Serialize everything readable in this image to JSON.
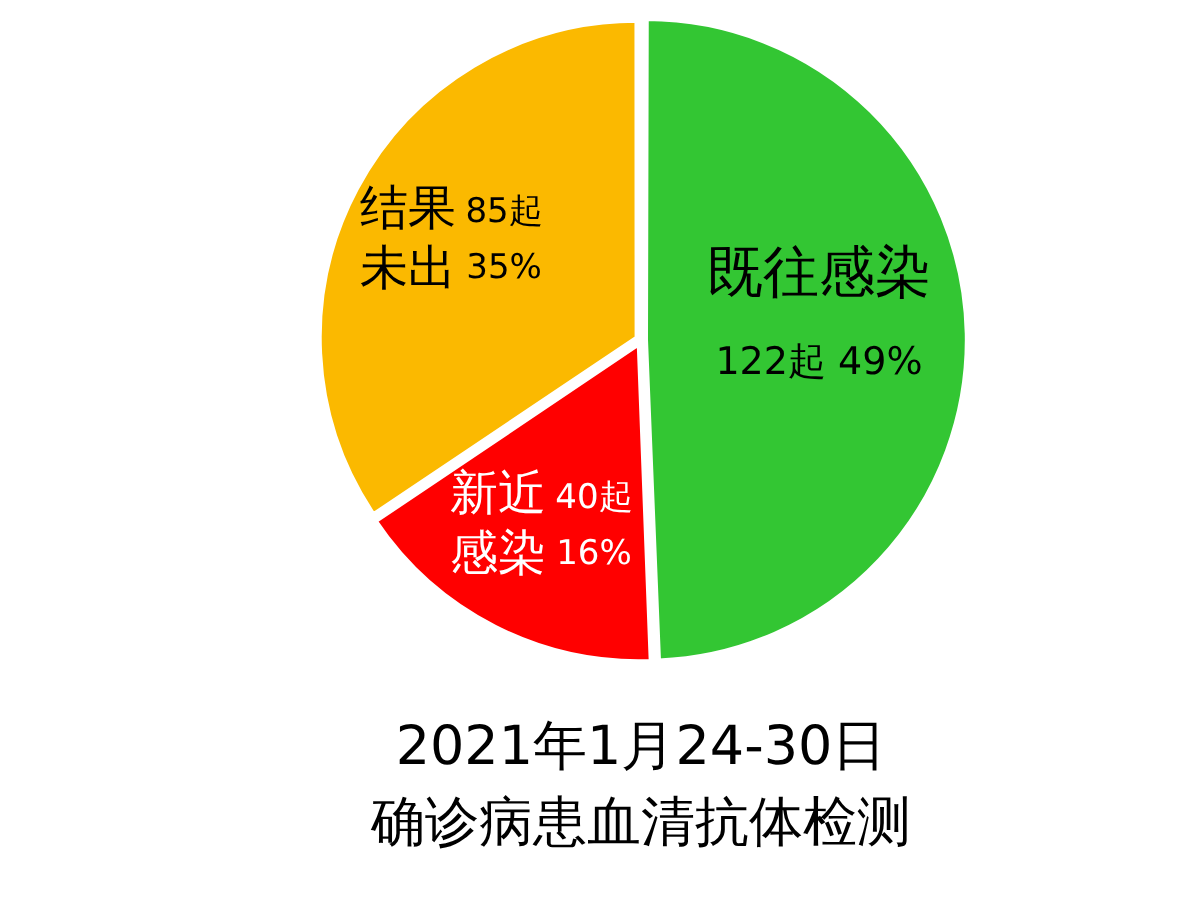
{
  "chart_data": {
    "type": "pie",
    "title": "2021年1月24-30日",
    "subtitle": "确诊病患血清抗体检测",
    "categories": [
      "既往感染",
      "新近感染",
      "结果未出"
    ],
    "values": [
      122,
      40,
      85
    ],
    "colors": [
      "#33c633",
      "#ff0000",
      "#fbb900"
    ],
    "value_labels": [
      "122起 49%",
      "40起 16%",
      "85起 35%"
    ]
  }
}
